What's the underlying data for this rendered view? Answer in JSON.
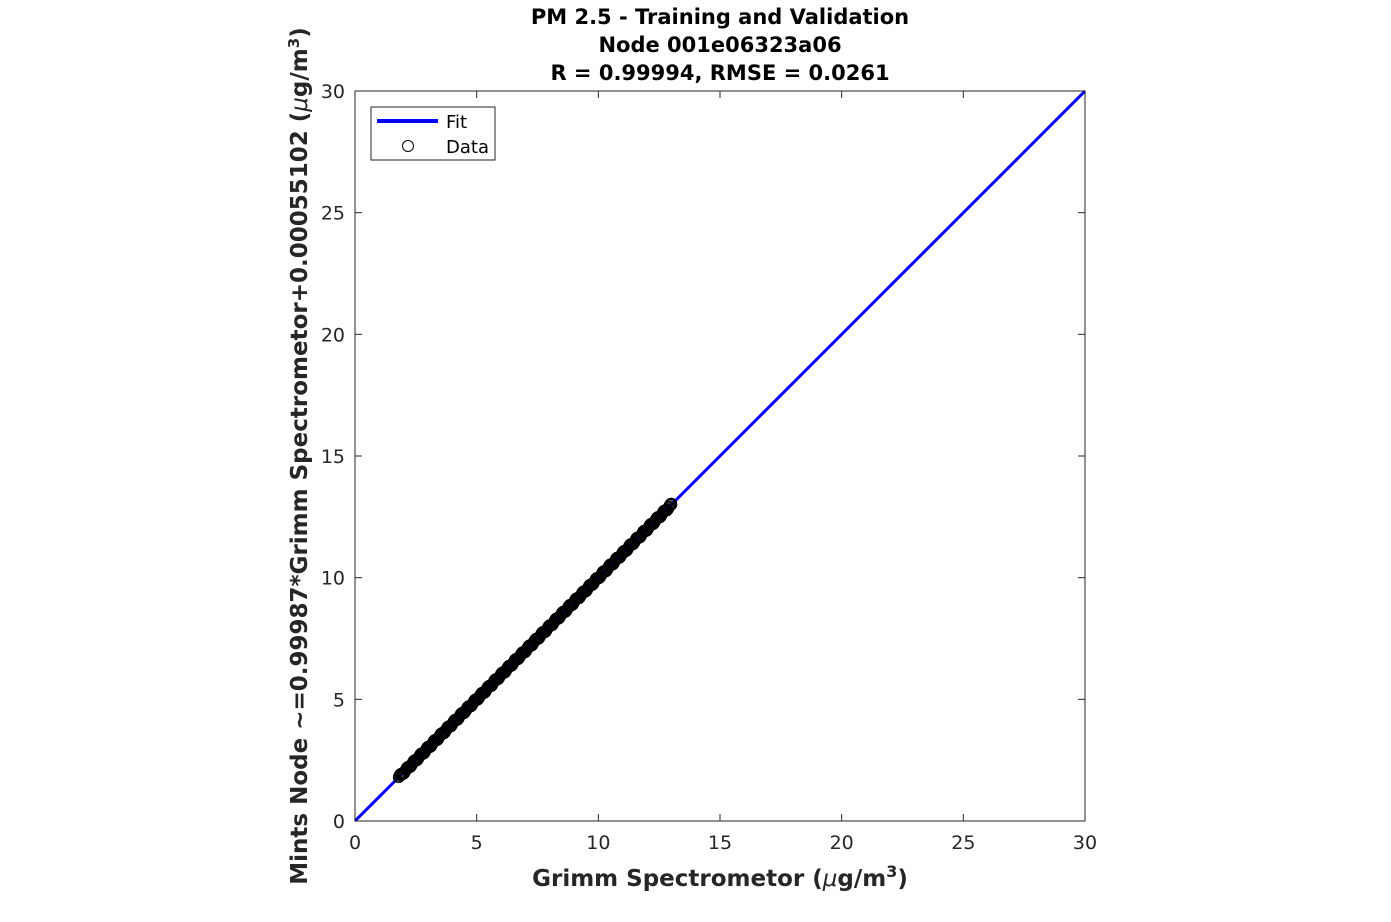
{
  "chart_data": {
    "type": "scatter",
    "title_lines": [
      "PM 2.5 - Training and Validation",
      "Node 001e06323a06",
      "R = 0.99994, RMSE = 0.0261"
    ],
    "xlabel": {
      "text": "Grimm Spectrometor (",
      "mu": "μ",
      "unit": "g/m",
      "sup": "3",
      "close": ")"
    },
    "ylabel": {
      "text": "Mints Node ~=0.99987*Grimm Spectrometor+0.00055102 (",
      "mu": "μ",
      "unit": "g/m",
      "sup": "3",
      "close": ")"
    },
    "xlim": [
      0,
      30
    ],
    "ylim": [
      0,
      30
    ],
    "xticks": [
      0,
      5,
      10,
      15,
      20,
      25,
      30
    ],
    "yticks": [
      0,
      5,
      10,
      15,
      20,
      25,
      30
    ],
    "grid": false,
    "legend_position": "top-left",
    "legend": [
      {
        "label": "Fit",
        "kind": "line",
        "color": "#0000ff"
      },
      {
        "label": "Data",
        "kind": "marker",
        "color": "#000000"
      }
    ],
    "fit": {
      "slope": 0.99987,
      "intercept": 0.00055102,
      "x_range": [
        0,
        30
      ],
      "color": "#0000ff"
    },
    "data_x_range": [
      1.8,
      13.0
    ],
    "series": [
      {
        "label": "Data",
        "x": [
          1.8,
          1.9,
          2.0,
          2.1,
          2.2,
          2.3,
          2.4,
          2.5,
          2.6,
          2.7,
          2.8,
          2.9,
          3.0,
          3.1,
          3.2,
          3.3,
          3.4,
          3.5,
          3.6,
          3.7,
          3.8,
          3.9,
          4.0,
          4.1,
          4.2,
          4.3,
          4.4,
          4.5,
          4.6,
          4.7,
          4.8,
          4.9,
          5.0,
          5.1,
          5.2,
          5.3,
          5.4,
          5.5,
          5.6,
          5.7,
          5.8,
          5.9,
          6.0,
          6.1,
          6.2,
          6.3,
          6.4,
          6.5,
          6.6,
          6.7,
          6.8,
          6.9,
          7.0,
          7.1,
          7.2,
          7.3,
          7.4,
          7.5,
          7.6,
          7.7,
          7.8,
          7.9,
          8.0,
          8.2,
          8.4,
          8.6,
          8.8,
          9.0,
          9.2,
          9.4,
          9.6,
          9.8,
          10.0,
          10.2,
          10.5,
          10.8,
          11.0,
          11.3,
          11.6,
          11.9,
          12.1,
          12.3,
          12.5,
          12.7,
          12.9,
          13.0
        ],
        "y": [
          1.8,
          1.9,
          2.0,
          2.1,
          2.2,
          2.3,
          2.4,
          2.5,
          2.6,
          2.7,
          2.8,
          2.9,
          3.0,
          3.1,
          3.2,
          3.3,
          3.4,
          3.5,
          3.6,
          3.7,
          3.8,
          3.9,
          4.0,
          4.1,
          4.2,
          4.3,
          4.4,
          4.5,
          4.6,
          4.7,
          4.8,
          4.9,
          5.0,
          5.1,
          5.2,
          5.3,
          5.4,
          5.5,
          5.6,
          5.7,
          5.8,
          5.9,
          6.0,
          6.1,
          6.2,
          6.3,
          6.4,
          6.5,
          6.6,
          6.7,
          6.8,
          6.9,
          7.0,
          7.1,
          7.2,
          7.3,
          7.4,
          7.5,
          7.6,
          7.7,
          7.8,
          7.9,
          8.0,
          8.2,
          8.4,
          8.6,
          8.8,
          9.0,
          9.2,
          9.4,
          9.6,
          9.8,
          10.0,
          10.2,
          10.5,
          10.8,
          11.0,
          11.3,
          11.6,
          11.9,
          12.1,
          12.3,
          12.5,
          12.7,
          12.9,
          13.0
        ]
      }
    ]
  }
}
